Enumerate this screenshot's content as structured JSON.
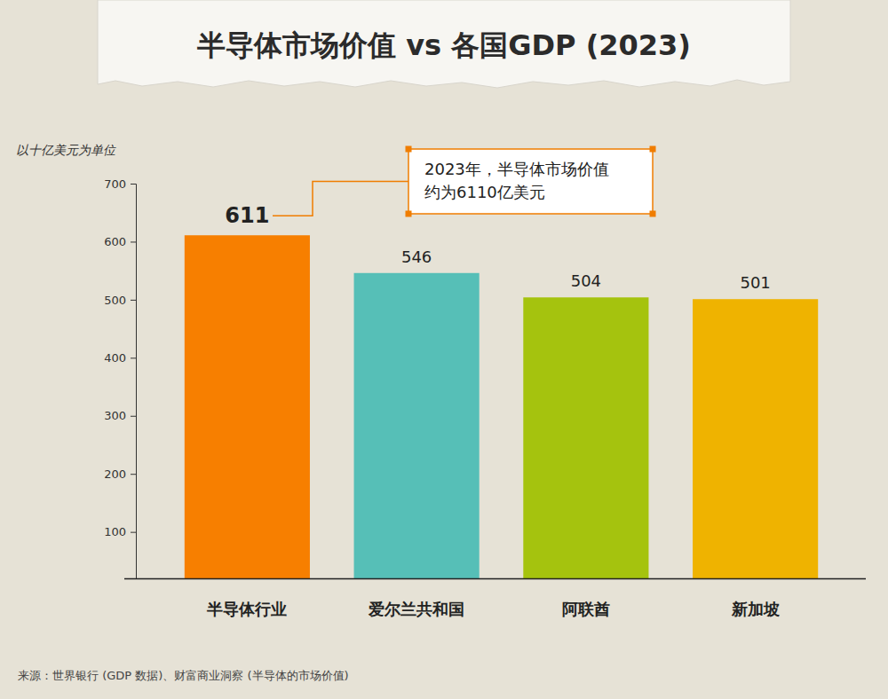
{
  "chart_data": {
    "type": "bar",
    "title": "半导体市场价值 vs 各国GDP (2023)",
    "y_label": "以十亿美元为单位",
    "categories": [
      "半导体行业",
      "爱尔兰共和国",
      "阿联酋",
      "新加坡"
    ],
    "values": [
      611,
      546,
      504,
      501
    ],
    "colors": [
      "#f77f00",
      "#56bfb7",
      "#a5c30e",
      "#efb300"
    ],
    "ylim": [
      20,
      700
    ],
    "yticks": [
      100,
      200,
      300,
      400,
      500,
      600,
      700
    ],
    "data_labels": true,
    "annotation": [
      "2023年，半导体市场价值",
      "约为6110亿美元"
    ],
    "source": "来源：世界银行 (GDP 数据)、财富商业洞察 (半导体的市场价值)"
  }
}
